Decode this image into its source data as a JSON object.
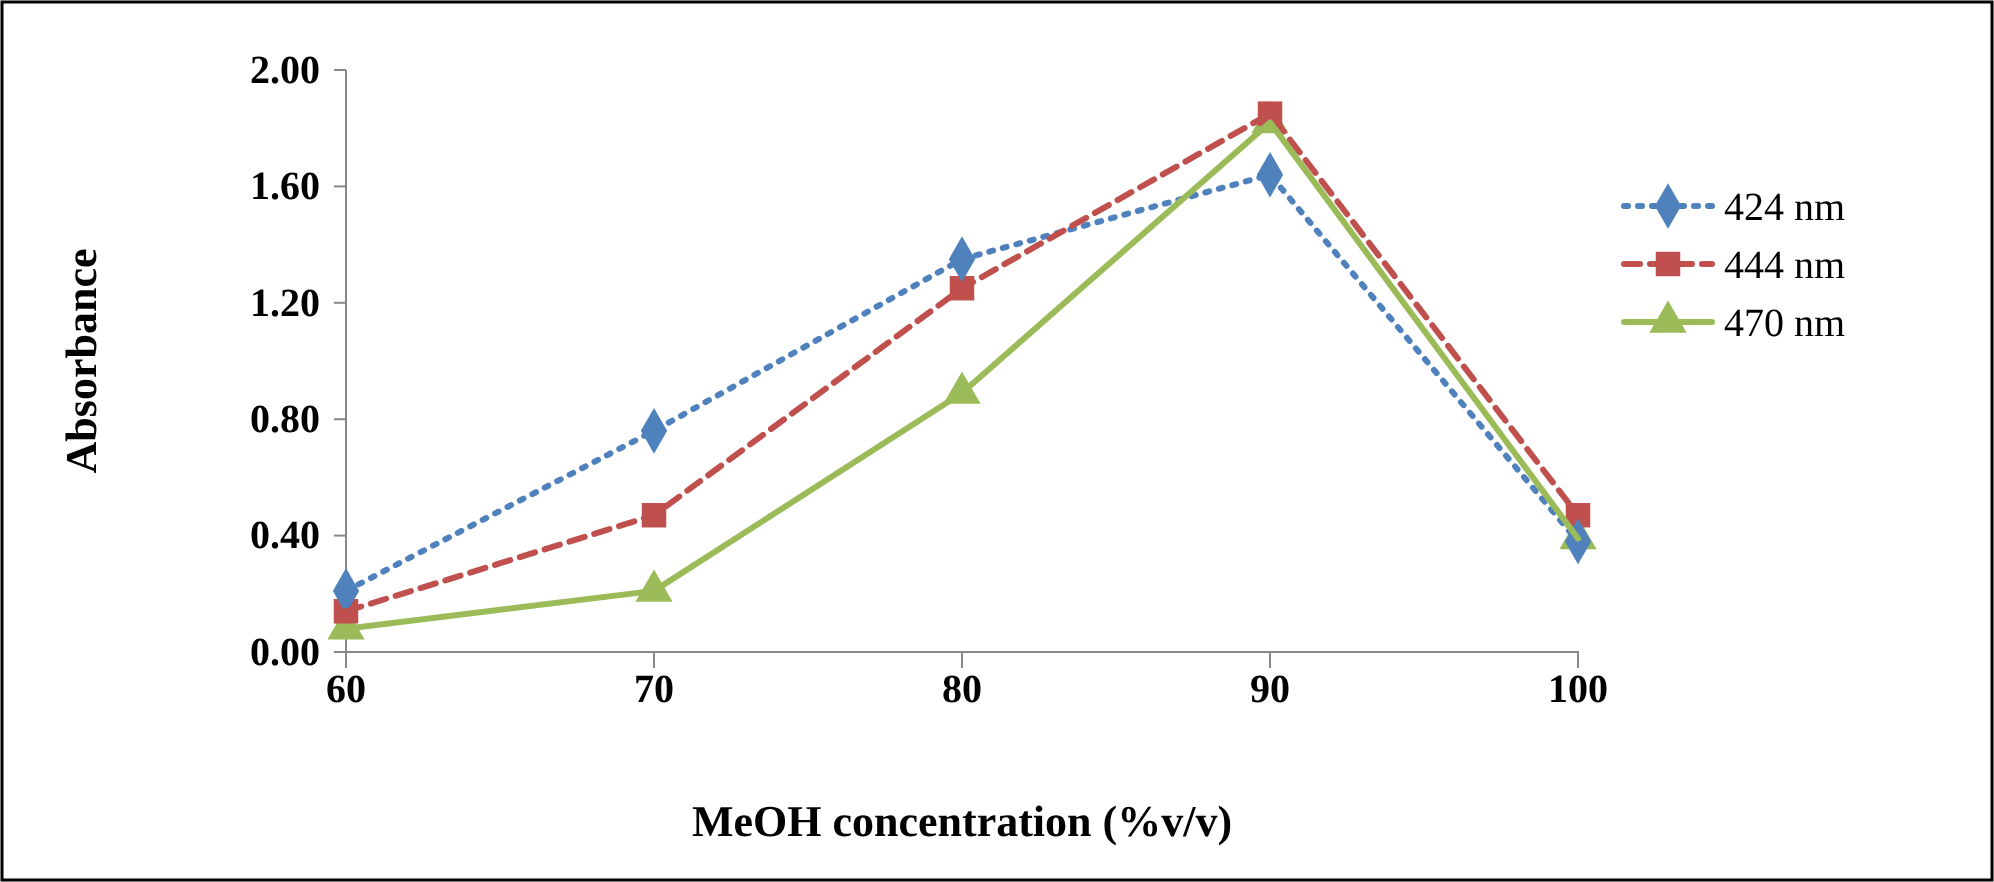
{
  "chart_data": {
    "type": "line",
    "xlabel": "MeOH concentration (%v/v)",
    "ylabel": "Absorbance",
    "x": [
      60,
      70,
      80,
      90,
      100
    ],
    "series": [
      {
        "name": "424 nm",
        "color": "#4f81bd",
        "values": [
          0.21,
          0.76,
          1.35,
          1.64,
          0.38
        ],
        "marker": "diamond",
        "line_style": "dotted"
      },
      {
        "name": "444 nm",
        "color": "#c0504d",
        "values": [
          0.14,
          0.47,
          1.25,
          1.85,
          0.47
        ],
        "marker": "square",
        "line_style": "dashed"
      },
      {
        "name": "470 nm",
        "color": "#9bbb59",
        "values": [
          0.08,
          0.21,
          0.89,
          1.82,
          0.39
        ],
        "marker": "triangle",
        "line_style": "solid"
      }
    ],
    "xlim": [
      60,
      100
    ],
    "xticks": [
      60,
      70,
      80,
      90,
      100
    ],
    "ylim": [
      0,
      2
    ],
    "yticks": [
      {
        "value": 0,
        "label": "0.00"
      },
      {
        "value": 0.4,
        "label": "0.40"
      },
      {
        "value": 0.8,
        "label": "0.80"
      },
      {
        "value": 1.2,
        "label": "1.20"
      },
      {
        "value": 1.6,
        "label": "1.60"
      },
      {
        "value": 2,
        "label": "2.00"
      }
    ],
    "grid": false,
    "legend": "right"
  }
}
